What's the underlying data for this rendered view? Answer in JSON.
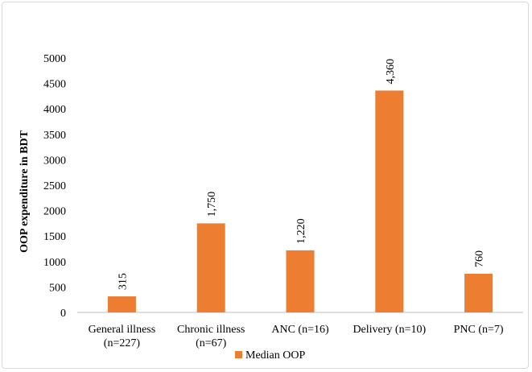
{
  "chart_data": {
    "type": "bar",
    "title": "",
    "xlabel": "",
    "ylabel": "OOP expenditure in BDT",
    "ylim": [
      0,
      5000
    ],
    "yticks": [
      0,
      500,
      1000,
      1500,
      2000,
      2500,
      3000,
      3500,
      4000,
      4500,
      5000
    ],
    "grid": false,
    "legend_position": "bottom",
    "categories": [
      [
        "General illness",
        "(n=227)"
      ],
      [
        "Chronic illness",
        "(n=67)"
      ],
      [
        "ANC (n=16)"
      ],
      [
        "Delivery (n=10)"
      ],
      [
        "PNC (n=7)"
      ]
    ],
    "series": [
      {
        "name": "Median OOP",
        "color": "#ed7d31",
        "values": [
          315,
          1750,
          1220,
          4360,
          760
        ],
        "labels": [
          "315",
          "1,750",
          "1,220",
          "4,360",
          "760"
        ]
      }
    ]
  }
}
